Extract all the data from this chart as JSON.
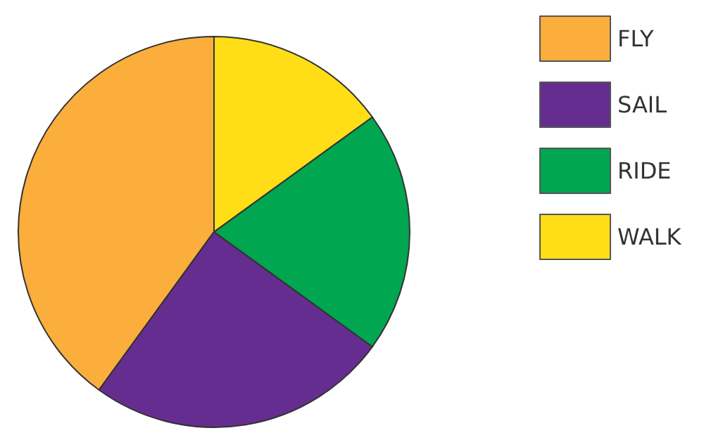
{
  "chart_data": {
    "type": "pie",
    "categories": [
      "FLY",
      "SAIL",
      "RIDE",
      "WALK"
    ],
    "values": [
      40,
      25,
      20,
      15
    ],
    "colors": [
      "#fbae3c",
      "#662d91",
      "#00a650",
      "#ffde17"
    ],
    "legend": "top right"
  }
}
